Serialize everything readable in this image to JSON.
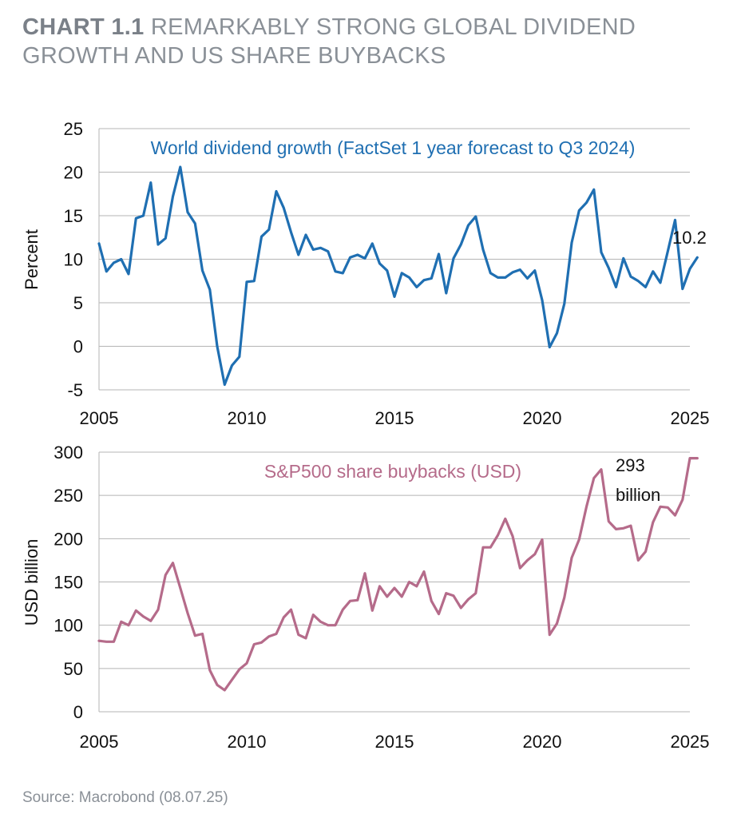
{
  "title": {
    "number": "CHART 1.1",
    "text": "REMARKABLY STRONG GLOBAL DIVIDEND GROWTH AND US SHARE BUYBACKS"
  },
  "source": "Source: Macrobond (08.07.25)",
  "colors": {
    "dividend": "#1f6fb2",
    "buyback": "#b56b8a",
    "grid": "#b5b5b5",
    "title": "#8a9097"
  },
  "chart_data": [
    {
      "type": "line",
      "ylabel": "Percent",
      "xlabel": "",
      "xlim": [
        2005,
        2025
      ],
      "ylim": [
        -5,
        25
      ],
      "xticks": [
        2005,
        2010,
        2015,
        2020,
        2025
      ],
      "yticks": [
        -5,
        0,
        5,
        10,
        15,
        20,
        25
      ],
      "grid": "horizontal",
      "series": [
        {
          "name": "World dividend growth (FactSet 1 year forecast to Q3 2024)",
          "end_label": "10.2",
          "x": [
            2005.0,
            2005.25,
            2005.5,
            2005.75,
            2006.0,
            2006.25,
            2006.5,
            2006.75,
            2007.0,
            2007.25,
            2007.5,
            2007.75,
            2008.0,
            2008.25,
            2008.5,
            2008.75,
            2009.0,
            2009.25,
            2009.5,
            2009.75,
            2010.0,
            2010.25,
            2010.5,
            2010.75,
            2011.0,
            2011.25,
            2011.5,
            2011.75,
            2012.0,
            2012.25,
            2012.5,
            2012.75,
            2013.0,
            2013.25,
            2013.5,
            2013.75,
            2014.0,
            2014.25,
            2014.5,
            2014.75,
            2015.0,
            2015.25,
            2015.5,
            2015.75,
            2016.0,
            2016.25,
            2016.5,
            2016.75,
            2017.0,
            2017.25,
            2017.5,
            2017.75,
            2018.0,
            2018.25,
            2018.5,
            2018.75,
            2019.0,
            2019.25,
            2019.5,
            2019.75,
            2020.0,
            2020.25,
            2020.5,
            2020.75,
            2021.0,
            2021.25,
            2021.5,
            2021.75,
            2022.0,
            2022.25,
            2022.5,
            2022.75,
            2023.0,
            2023.25,
            2023.5,
            2023.75,
            2024.0,
            2024.25,
            2024.5,
            2024.75,
            2025.0,
            2025.25
          ],
          "values": [
            11.8,
            8.6,
            9.6,
            10.0,
            8.3,
            14.7,
            15.0,
            18.8,
            11.7,
            12.4,
            17.2,
            20.6,
            15.4,
            14.1,
            8.7,
            6.5,
            0.0,
            -4.4,
            -2.2,
            -1.2,
            7.4,
            7.5,
            12.6,
            13.4,
            17.8,
            15.9,
            13.1,
            10.5,
            12.8,
            11.1,
            11.3,
            10.9,
            8.6,
            8.4,
            10.2,
            10.5,
            10.1,
            11.8,
            9.5,
            8.7,
            5.7,
            8.4,
            7.9,
            6.8,
            7.6,
            7.8,
            10.6,
            6.1,
            10.1,
            11.7,
            13.9,
            14.9,
            11.1,
            8.4,
            7.9,
            7.9,
            8.5,
            8.8,
            7.8,
            8.7,
            5.3,
            -0.1,
            1.5,
            4.9,
            11.9,
            15.6,
            16.5,
            18.0,
            10.8,
            9.0,
            6.8,
            10.1,
            8.0,
            7.5,
            6.8,
            8.6,
            7.3,
            10.9,
            14.5,
            6.6,
            8.9,
            10.2
          ]
        }
      ]
    },
    {
      "type": "line",
      "ylabel": "USD billion",
      "xlabel": "",
      "xlim": [
        2005,
        2025
      ],
      "ylim": [
        0,
        300
      ],
      "xticks": [
        2005,
        2010,
        2015,
        2020,
        2025
      ],
      "yticks": [
        0,
        50,
        100,
        150,
        200,
        250,
        300
      ],
      "grid": "horizontal",
      "series": [
        {
          "name": "S&P500 share buybacks (USD)",
          "end_label_line1": "293",
          "end_label_line2": "billion",
          "x": [
            2005.0,
            2005.25,
            2005.5,
            2005.75,
            2006.0,
            2006.25,
            2006.5,
            2006.75,
            2007.0,
            2007.25,
            2007.5,
            2007.75,
            2008.0,
            2008.25,
            2008.5,
            2008.75,
            2009.0,
            2009.25,
            2009.5,
            2009.75,
            2010.0,
            2010.25,
            2010.5,
            2010.75,
            2011.0,
            2011.25,
            2011.5,
            2011.75,
            2012.0,
            2012.25,
            2012.5,
            2012.75,
            2013.0,
            2013.25,
            2013.5,
            2013.75,
            2014.0,
            2014.25,
            2014.5,
            2014.75,
            2015.0,
            2015.25,
            2015.5,
            2015.75,
            2016.0,
            2016.25,
            2016.5,
            2016.75,
            2017.0,
            2017.25,
            2017.5,
            2017.75,
            2018.0,
            2018.25,
            2018.5,
            2018.75,
            2019.0,
            2019.25,
            2019.5,
            2019.75,
            2020.0,
            2020.25,
            2020.5,
            2020.75,
            2021.0,
            2021.25,
            2021.5,
            2021.75,
            2022.0,
            2022.25,
            2022.5,
            2022.75,
            2023.0,
            2023.25,
            2023.5,
            2023.75,
            2024.0,
            2024.25,
            2024.5,
            2024.75,
            2025.0,
            2025.25
          ],
          "values": [
            82,
            81,
            81,
            104,
            100,
            117,
            110,
            105,
            118,
            158,
            172,
            143,
            114,
            88,
            90,
            48,
            31,
            25,
            37,
            49,
            56,
            78,
            80,
            87,
            90,
            109,
            118,
            89,
            85,
            112,
            104,
            100,
            100,
            118,
            128,
            129,
            160,
            117,
            145,
            133,
            143,
            133,
            150,
            145,
            162,
            128,
            113,
            137,
            134,
            120,
            130,
            137,
            190,
            190,
            204,
            223,
            203,
            166,
            175,
            182,
            199,
            89,
            102,
            132,
            178,
            199,
            237,
            270,
            280,
            220,
            211,
            212,
            215,
            175,
            185,
            219,
            237,
            236,
            227,
            245,
            293,
            293
          ]
        }
      ]
    }
  ]
}
